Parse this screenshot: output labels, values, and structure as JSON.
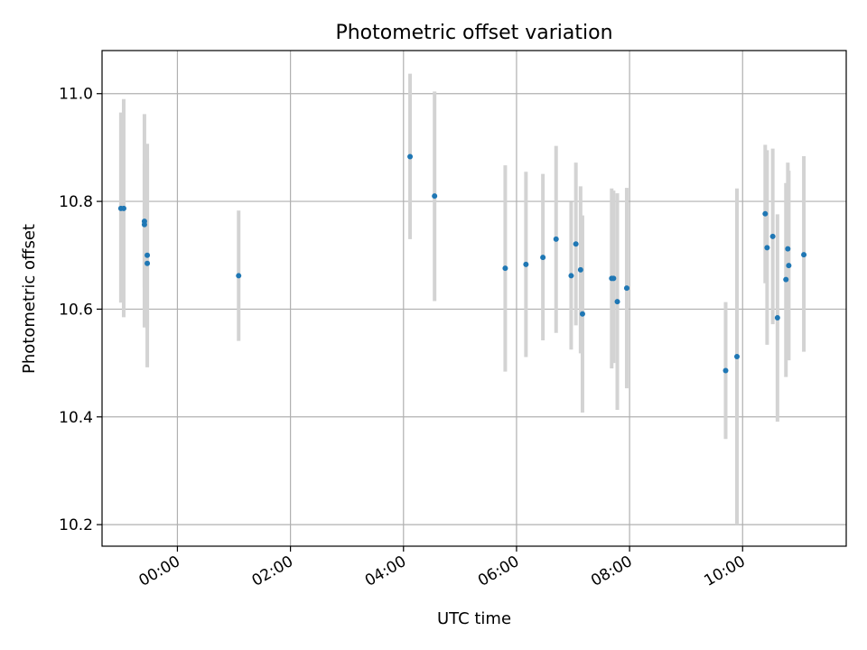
{
  "chart_data": {
    "type": "scatter",
    "title": "Photometric offset variation",
    "xlabel": "UTC time",
    "ylabel": "Photometric offset",
    "grid": true,
    "xlim": [
      "-01:20",
      "11:50"
    ],
    "ylim": [
      10.16,
      11.08
    ],
    "x_ticks": [
      "00:00",
      "02:00",
      "04:00",
      "06:00",
      "08:00",
      "10:00"
    ],
    "y_ticks": [
      "10.2",
      "10.4",
      "10.6",
      "10.8",
      "11.0"
    ],
    "marker_color": "#1f77b4",
    "errorbar_color": "#d3d3d3",
    "points": [
      {
        "x": "-01:00",
        "y": 10.787,
        "err_low": 10.612,
        "err_high": 10.965
      },
      {
        "x": "-00:57",
        "y": 10.787,
        "err_low": 10.585,
        "err_high": 10.99
      },
      {
        "x": "-00:35",
        "y": 10.763,
        "err_low": 10.566,
        "err_high": 10.962
      },
      {
        "x": "-00:35",
        "y": 10.757,
        "err_low": 10.64,
        "err_high": 10.87
      },
      {
        "x": "-00:32",
        "y": 10.7,
        "err_low": 10.565,
        "err_high": 10.907
      },
      {
        "x": "-00:32",
        "y": 10.685,
        "err_low": 10.492,
        "err_high": 10.88
      },
      {
        "x": "01:05",
        "y": 10.662,
        "err_low": 10.541,
        "err_high": 10.783
      },
      {
        "x": "04:07",
        "y": 10.883,
        "err_low": 10.73,
        "err_high": 11.037
      },
      {
        "x": "04:33",
        "y": 10.81,
        "err_low": 10.615,
        "err_high": 11.004
      },
      {
        "x": "05:48",
        "y": 10.676,
        "err_low": 10.484,
        "err_high": 10.867
      },
      {
        "x": "06:10",
        "y": 10.683,
        "err_low": 10.511,
        "err_high": 10.855
      },
      {
        "x": "06:28",
        "y": 10.696,
        "err_low": 10.542,
        "err_high": 10.851
      },
      {
        "x": "06:42",
        "y": 10.73,
        "err_low": 10.556,
        "err_high": 10.903
      },
      {
        "x": "06:58",
        "y": 10.662,
        "err_low": 10.525,
        "err_high": 10.799
      },
      {
        "x": "07:03",
        "y": 10.721,
        "err_low": 10.57,
        "err_high": 10.872
      },
      {
        "x": "07:08",
        "y": 10.673,
        "err_low": 10.518,
        "err_high": 10.828
      },
      {
        "x": "07:10",
        "y": 10.591,
        "err_low": 10.408,
        "err_high": 10.774
      },
      {
        "x": "07:41",
        "y": 10.657,
        "err_low": 10.49,
        "err_high": 10.824
      },
      {
        "x": "07:43",
        "y": 10.657,
        "err_low": 10.5,
        "err_high": 10.82
      },
      {
        "x": "07:47",
        "y": 10.614,
        "err_low": 10.413,
        "err_high": 10.815
      },
      {
        "x": "07:57",
        "y": 10.639,
        "err_low": 10.453,
        "err_high": 10.825
      },
      {
        "x": "09:42",
        "y": 10.486,
        "err_low": 10.359,
        "err_high": 10.613
      },
      {
        "x": "09:54",
        "y": 10.512,
        "err_low": 10.2,
        "err_high": 10.824
      },
      {
        "x": "10:24",
        "y": 10.777,
        "err_low": 10.648,
        "err_high": 10.905
      },
      {
        "x": "10:26",
        "y": 10.714,
        "err_low": 10.534,
        "err_high": 10.895
      },
      {
        "x": "10:32",
        "y": 10.735,
        "err_low": 10.572,
        "err_high": 10.898
      },
      {
        "x": "10:37",
        "y": 10.584,
        "err_low": 10.391,
        "err_high": 10.776
      },
      {
        "x": "10:46",
        "y": 10.655,
        "err_low": 10.474,
        "err_high": 10.834
      },
      {
        "x": "10:48",
        "y": 10.712,
        "err_low": 10.553,
        "err_high": 10.872
      },
      {
        "x": "10:49",
        "y": 10.681,
        "err_low": 10.505,
        "err_high": 10.857
      },
      {
        "x": "11:05",
        "y": 10.701,
        "err_low": 10.521,
        "err_high": 10.884
      }
    ]
  }
}
